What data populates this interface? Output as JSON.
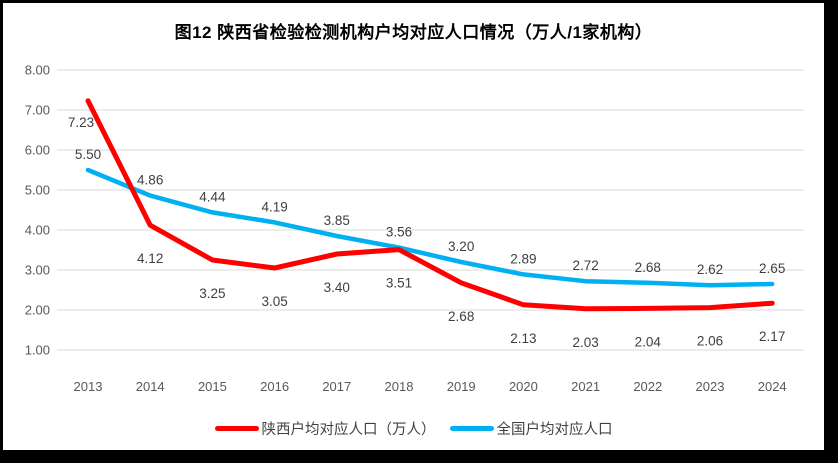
{
  "title": "图12  陕西省检验检测机构户均对应人口情况（万人/1家机构）",
  "chart_data": {
    "type": "line",
    "title": "图12  陕西省检验检测机构户均对应人口情况（万人/1家机构）",
    "x": [
      "2013",
      "2014",
      "2015",
      "2016",
      "2017",
      "2018",
      "2019",
      "2020",
      "2021",
      "2022",
      "2023",
      "2024"
    ],
    "series": [
      {
        "id": "shaanxi",
        "name": "陕西户均对应人口（万人）",
        "color": "#FF0000",
        "label_position": "below",
        "values": [
          7.23,
          4.12,
          3.25,
          3.05,
          3.4,
          3.51,
          2.68,
          2.13,
          2.03,
          2.04,
          2.06,
          2.17
        ]
      },
      {
        "id": "national",
        "name": "全国户均对应人口",
        "color": "#00B0F0",
        "label_position": "above",
        "values": [
          5.5,
          4.86,
          4.44,
          4.19,
          3.85,
          3.56,
          3.2,
          2.89,
          2.72,
          2.68,
          2.62,
          2.65
        ]
      }
    ],
    "ylim": [
      1,
      8
    ],
    "yticks": [
      "8.00",
      "7.00",
      "6.00",
      "5.00",
      "4.00",
      "3.00",
      "2.00",
      "1.00"
    ],
    "xlabel": "",
    "ylabel": "",
    "grid": true,
    "legend_position": "bottom",
    "data_labels": true,
    "data_label_format": "0.00"
  },
  "style": {
    "gridline_color": "#D9D9D9",
    "axis_label_color": "#595959",
    "data_label_color": "#404040",
    "title_color": "#000000",
    "background_color": "#FFFFFF",
    "frame_color": "#000000"
  }
}
